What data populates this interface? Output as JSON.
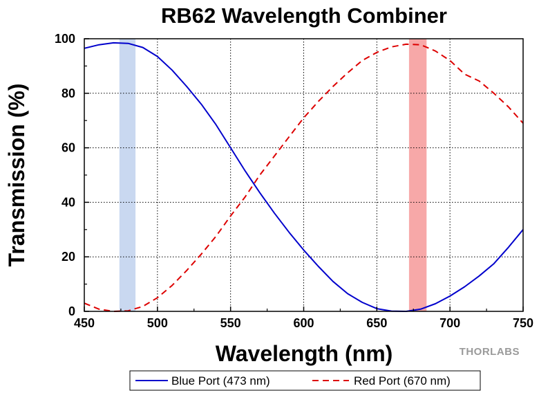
{
  "chart_data": {
    "type": "line",
    "title": "RB62 Wavelength Combiner",
    "xlabel": "Wavelength (nm)",
    "ylabel": "Transmission (%)",
    "xlim": [
      450,
      750
    ],
    "ylim": [
      0,
      100
    ],
    "x_ticks": [
      450,
      500,
      550,
      600,
      650,
      700,
      750
    ],
    "y_ticks": [
      0,
      20,
      40,
      60,
      80,
      100
    ],
    "grid": true,
    "legend_position": "bottom",
    "highlight_bands": [
      {
        "range": [
          474,
          485
        ],
        "color": "#c9d8f0"
      },
      {
        "range": [
          672,
          684
        ],
        "color": "#f7a8a8"
      }
    ],
    "series": [
      {
        "name": "Blue Port (473 nm)",
        "color": "#0000cc",
        "dash": "solid",
        "x": [
          450,
          460,
          470,
          480,
          490,
          500,
          510,
          520,
          530,
          540,
          550,
          560,
          570,
          580,
          590,
          600,
          610,
          620,
          630,
          640,
          650,
          660,
          670,
          680,
          690,
          700,
          710,
          720,
          730,
          740,
          750
        ],
        "y": [
          96.5,
          97.8,
          98.5,
          98.3,
          96.8,
          93.5,
          88.5,
          82.5,
          76,
          68.5,
          60,
          51.5,
          43.5,
          36,
          29,
          22.5,
          16.5,
          11,
          6.5,
          3.3,
          1,
          0.1,
          0,
          0.8,
          2.8,
          5.6,
          9,
          13,
          17.5,
          23.5,
          30
        ]
      },
      {
        "name": "Red Port (670 nm)",
        "color": "#dd0000",
        "dash": "dashed",
        "x": [
          450,
          460,
          470,
          480,
          490,
          500,
          510,
          520,
          530,
          540,
          550,
          560,
          570,
          580,
          590,
          600,
          610,
          620,
          630,
          640,
          650,
          660,
          670,
          680,
          690,
          700,
          710,
          720,
          730,
          740,
          750
        ],
        "y": [
          3,
          0.8,
          0,
          0.2,
          1.8,
          5,
          9.5,
          15,
          21,
          27.5,
          35,
          42,
          50,
          57,
          64,
          71,
          77,
          82.5,
          87.5,
          92,
          95,
          97,
          98,
          97.8,
          95.5,
          92,
          87,
          84.5,
          80,
          75,
          69
        ]
      }
    ]
  },
  "logo": {
    "text": "THORLABS"
  }
}
